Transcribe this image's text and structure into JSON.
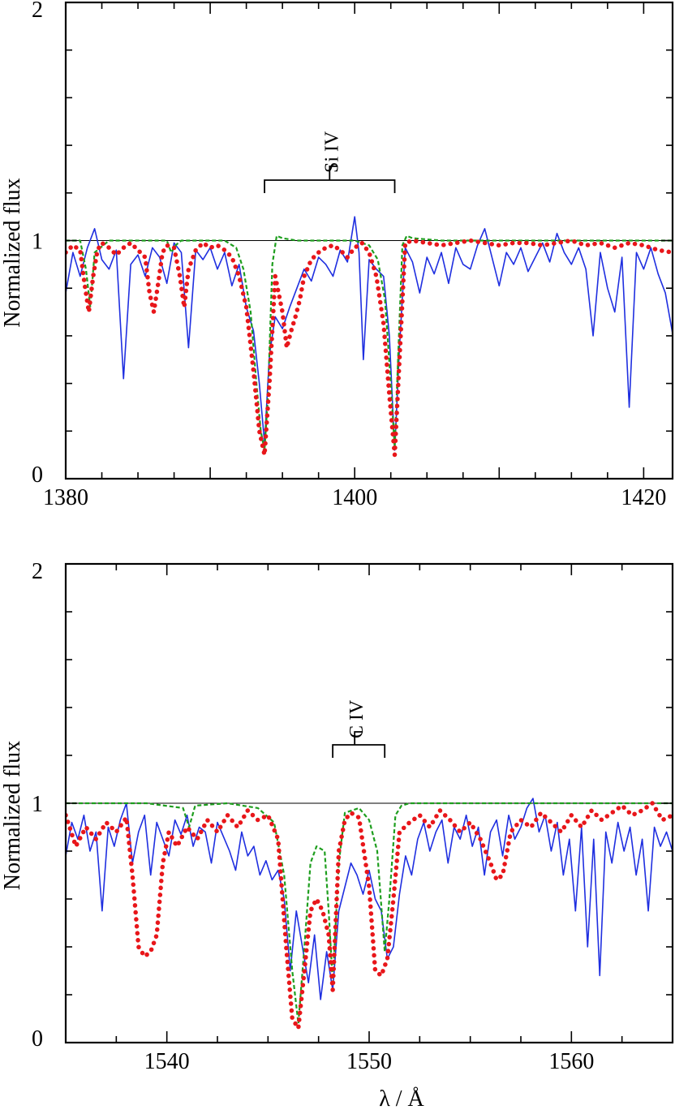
{
  "chart_data": [
    {
      "type": "line",
      "ylabel": "Normalized flux",
      "xlabel": "",
      "xlim": [
        1380,
        1422
      ],
      "ylim": [
        0,
        2
      ],
      "x_ticks": [
        1380,
        1400,
        1420
      ],
      "y_ticks": [
        0,
        1,
        2
      ],
      "ion": {
        "label": "Si IV",
        "lines": [
          1393.76,
          1402.77
        ]
      },
      "reference_level": 1,
      "series": [
        {
          "style": "observed",
          "color": "#1f2fe0",
          "x": [
            1380.0,
            1380.5,
            1381.0,
            1381.5,
            1382.0,
            1382.5,
            1383.0,
            1383.5,
            1384.0,
            1384.5,
            1385.0,
            1385.5,
            1386.0,
            1386.5,
            1387.0,
            1387.5,
            1388.0,
            1388.5,
            1389.0,
            1389.5,
            1390.0,
            1390.5,
            1391.0,
            1391.5,
            1392.0,
            1392.5,
            1393.0,
            1393.4,
            1393.76,
            1394.1,
            1394.5,
            1395.0,
            1395.5,
            1396.0,
            1396.5,
            1397.0,
            1397.5,
            1398.0,
            1398.5,
            1399.0,
            1399.5,
            1400.0,
            1400.3,
            1400.6,
            1401.0,
            1401.5,
            1402.0,
            1402.4,
            1402.77,
            1403.1,
            1403.5,
            1404.0,
            1404.5,
            1405.0,
            1405.5,
            1406.0,
            1406.5,
            1407.0,
            1407.5,
            1408.0,
            1408.5,
            1409.0,
            1409.5,
            1410.0,
            1410.5,
            1411.0,
            1411.5,
            1412.0,
            1412.5,
            1413.0,
            1413.5,
            1414.0,
            1414.5,
            1415.0,
            1415.5,
            1416.0,
            1416.5,
            1417.0,
            1417.5,
            1418.0,
            1418.5,
            1419.0,
            1419.5,
            1420.0,
            1420.5,
            1421.0,
            1421.5,
            1422.0
          ],
          "y": [
            0.78,
            0.95,
            0.85,
            0.97,
            1.05,
            0.92,
            0.88,
            0.96,
            0.42,
            0.9,
            0.94,
            0.85,
            0.97,
            0.93,
            0.82,
            0.99,
            0.95,
            0.55,
            0.96,
            0.92,
            0.97,
            0.88,
            0.95,
            0.81,
            0.9,
            0.72,
            0.62,
            0.4,
            0.15,
            0.52,
            0.68,
            0.63,
            0.72,
            0.8,
            0.88,
            0.83,
            0.93,
            0.9,
            0.85,
            0.96,
            0.91,
            1.1,
            0.95,
            0.5,
            0.92,
            0.88,
            0.85,
            0.6,
            0.12,
            0.55,
            0.97,
            0.91,
            0.78,
            0.93,
            0.86,
            0.95,
            0.82,
            0.97,
            0.9,
            0.88,
            0.98,
            1.05,
            0.93,
            0.81,
            0.95,
            0.9,
            0.97,
            0.87,
            0.93,
            0.99,
            0.91,
            1.03,
            0.95,
            0.9,
            0.97,
            0.88,
            0.6,
            0.95,
            0.8,
            0.7,
            0.93,
            0.3,
            0.95,
            0.88,
            0.97,
            0.86,
            0.78,
            0.61
          ]
        },
        {
          "style": "model-1",
          "color": "#e8161a",
          "x": [
            1380.0,
            1380.5,
            1381.0,
            1381.3,
            1381.6,
            1381.9,
            1382.2,
            1382.5,
            1383.0,
            1383.5,
            1384.0,
            1384.5,
            1385.0,
            1385.5,
            1385.8,
            1386.1,
            1386.4,
            1386.7,
            1387.0,
            1387.5,
            1387.9,
            1388.2,
            1388.5,
            1389.0,
            1389.5,
            1390.0,
            1390.5,
            1391.0,
            1391.5,
            1392.0,
            1392.5,
            1393.0,
            1393.4,
            1393.76,
            1394.1,
            1394.5,
            1395.0,
            1395.3,
            1395.6,
            1395.9,
            1396.2,
            1396.5,
            1397.0,
            1397.5,
            1398.0,
            1398.5,
            1399.0,
            1399.5,
            1400.0,
            1400.5,
            1401.0,
            1401.5,
            1402.0,
            1402.4,
            1402.77,
            1403.1,
            1403.5,
            1404.0,
            1405.0,
            1406.0,
            1407.0,
            1408.0,
            1409.0,
            1410.0,
            1411.0,
            1412.0,
            1413.0,
            1414.0,
            1415.0,
            1416.0,
            1417.0,
            1418.0,
            1419.0,
            1420.0,
            1421.0,
            1422.0
          ],
          "y": [
            0.95,
            0.98,
            0.96,
            0.82,
            0.7,
            0.85,
            0.96,
            0.99,
            0.97,
            0.94,
            0.97,
            0.99,
            0.96,
            0.93,
            0.78,
            0.7,
            0.82,
            0.95,
            0.98,
            0.97,
            0.85,
            0.72,
            0.88,
            0.96,
            0.99,
            0.97,
            0.98,
            0.96,
            0.93,
            0.85,
            0.72,
            0.45,
            0.2,
            0.1,
            0.4,
            0.85,
            0.7,
            0.55,
            0.62,
            0.68,
            0.75,
            0.85,
            0.92,
            0.95,
            0.97,
            0.98,
            0.96,
            0.93,
            0.97,
            0.99,
            0.95,
            0.85,
            0.65,
            0.35,
            0.1,
            0.5,
            0.99,
            1.0,
            0.99,
            0.98,
            0.99,
            1.0,
            0.99,
            0.98,
            0.99,
            0.99,
            0.98,
            0.99,
            1.0,
            0.98,
            0.99,
            0.97,
            0.99,
            0.98,
            0.96,
            0.95
          ]
        },
        {
          "style": "model-2",
          "color": "#1e9e1e",
          "x": [
            1380.0,
            1381.0,
            1381.4,
            1381.7,
            1382.0,
            1383.0,
            1385.0,
            1387.0,
            1387.3,
            1387.6,
            1388.0,
            1390.0,
            1391.0,
            1391.8,
            1392.3,
            1392.8,
            1393.2,
            1393.5,
            1393.76,
            1394.0,
            1394.3,
            1394.6,
            1395.0,
            1396.0,
            1398.0,
            1400.0,
            1401.0,
            1401.6,
            1402.1,
            1402.5,
            1402.77,
            1403.0,
            1403.3,
            1403.6,
            1404.0,
            1406.0,
            1410.0,
            1415.0,
            1420.0,
            1422.0
          ],
          "y": [
            1.0,
            1.0,
            0.88,
            0.72,
            0.95,
            1.0,
            1.0,
            1.0,
            0.95,
            0.98,
            1.0,
            1.0,
            1.0,
            0.97,
            0.88,
            0.7,
            0.4,
            0.2,
            0.12,
            0.35,
            0.9,
            1.02,
            1.01,
            1.0,
            1.0,
            1.0,
            0.98,
            0.92,
            0.75,
            0.4,
            0.13,
            0.5,
            0.98,
            1.02,
            1.01,
            1.0,
            1.0,
            1.0,
            1.0,
            1.0
          ]
        }
      ]
    },
    {
      "type": "line",
      "ylabel": "Normalized flux",
      "xlabel": "λ / Å",
      "xlim": [
        1535,
        1565
      ],
      "ylim": [
        0,
        2
      ],
      "x_ticks": [
        1540,
        1550,
        1560
      ],
      "y_ticks": [
        0,
        1,
        2
      ],
      "ion": {
        "label": "C IV",
        "lines": [
          1548.2,
          1550.77
        ]
      },
      "reference_level": 1,
      "series": [
        {
          "style": "observed",
          "color": "#1f2fe0",
          "x": [
            1535.0,
            1535.3,
            1535.6,
            1535.9,
            1536.2,
            1536.5,
            1536.8,
            1537.1,
            1537.4,
            1537.7,
            1538.0,
            1538.3,
            1538.6,
            1538.9,
            1539.2,
            1539.5,
            1539.8,
            1540.1,
            1540.4,
            1540.7,
            1541.0,
            1541.3,
            1541.6,
            1541.9,
            1542.2,
            1542.5,
            1542.8,
            1543.1,
            1543.4,
            1543.7,
            1544.0,
            1544.3,
            1544.6,
            1544.9,
            1545.2,
            1545.5,
            1545.8,
            1546.1,
            1546.4,
            1546.7,
            1547.0,
            1547.3,
            1547.6,
            1547.9,
            1548.2,
            1548.5,
            1548.8,
            1549.1,
            1549.4,
            1549.7,
            1550.0,
            1550.3,
            1550.6,
            1550.9,
            1551.2,
            1551.5,
            1551.8,
            1552.1,
            1552.4,
            1552.7,
            1553.0,
            1553.3,
            1553.6,
            1553.9,
            1554.2,
            1554.5,
            1554.8,
            1555.1,
            1555.4,
            1555.7,
            1556.0,
            1556.3,
            1556.6,
            1556.9,
            1557.2,
            1557.5,
            1557.8,
            1558.1,
            1558.4,
            1558.7,
            1559.0,
            1559.3,
            1559.6,
            1559.9,
            1560.2,
            1560.5,
            1560.8,
            1561.1,
            1561.4,
            1561.7,
            1562.0,
            1562.3,
            1562.6,
            1562.9,
            1563.2,
            1563.5,
            1563.8,
            1564.1,
            1564.4,
            1564.7,
            1565.0
          ],
          "y": [
            0.78,
            0.92,
            0.85,
            0.95,
            0.8,
            0.88,
            0.55,
            0.9,
            0.82,
            0.93,
            1.0,
            0.75,
            0.88,
            0.95,
            0.7,
            0.92,
            0.85,
            0.78,
            0.93,
            0.87,
            0.95,
            0.82,
            0.9,
            0.88,
            0.75,
            0.92,
            0.86,
            0.8,
            0.72,
            0.88,
            0.78,
            0.82,
            0.7,
            0.76,
            0.68,
            0.72,
            0.6,
            0.3,
            0.55,
            0.4,
            0.25,
            0.45,
            0.18,
            0.38,
            0.22,
            0.55,
            0.65,
            0.75,
            0.7,
            0.62,
            0.72,
            0.6,
            0.55,
            0.35,
            0.4,
            0.62,
            0.78,
            0.7,
            0.85,
            0.92,
            0.8,
            0.88,
            0.93,
            0.75,
            0.9,
            0.85,
            0.95,
            0.82,
            0.9,
            0.7,
            0.88,
            0.93,
            0.78,
            0.95,
            0.85,
            0.9,
            0.98,
            1.02,
            0.88,
            0.95,
            0.8,
            0.92,
            0.7,
            0.85,
            0.55,
            0.9,
            0.4,
            0.85,
            0.28,
            0.88,
            0.75,
            0.92,
            0.8,
            0.9,
            0.7,
            0.85,
            0.55,
            0.9,
            0.82,
            0.88,
            0.8
          ]
        },
        {
          "style": "model-1",
          "color": "#e8161a",
          "x": [
            1535.0,
            1535.5,
            1536.0,
            1536.5,
            1537.0,
            1537.5,
            1538.0,
            1538.3,
            1538.6,
            1538.9,
            1539.2,
            1539.5,
            1539.8,
            1540.1,
            1540.5,
            1541.0,
            1541.5,
            1542.0,
            1542.5,
            1543.0,
            1543.5,
            1544.0,
            1544.5,
            1545.0,
            1545.5,
            1545.9,
            1546.2,
            1546.5,
            1546.8,
            1547.1,
            1547.4,
            1547.7,
            1548.0,
            1548.2,
            1548.5,
            1548.8,
            1549.1,
            1549.5,
            1550.0,
            1550.3,
            1550.6,
            1550.9,
            1551.2,
            1551.5,
            1552.0,
            1552.5,
            1553.0,
            1553.5,
            1554.0,
            1554.5,
            1555.0,
            1555.5,
            1556.0,
            1556.3,
            1556.6,
            1557.0,
            1557.5,
            1558.0,
            1558.5,
            1559.0,
            1559.5,
            1560.0,
            1560.5,
            1561.0,
            1561.5,
            1562.0,
            1562.5,
            1563.0,
            1563.5,
            1564.0,
            1564.5,
            1565.0
          ],
          "y": [
            0.95,
            0.82,
            0.9,
            0.85,
            0.92,
            0.88,
            0.94,
            0.7,
            0.4,
            0.36,
            0.38,
            0.45,
            0.75,
            0.88,
            0.82,
            0.9,
            0.85,
            0.93,
            0.88,
            0.95,
            0.9,
            0.97,
            0.93,
            0.95,
            0.85,
            0.4,
            0.1,
            0.06,
            0.3,
            0.55,
            0.6,
            0.55,
            0.45,
            0.22,
            0.8,
            0.93,
            0.96,
            0.94,
            0.65,
            0.3,
            0.28,
            0.35,
            0.6,
            0.88,
            0.92,
            0.95,
            0.9,
            0.97,
            0.93,
            0.88,
            0.92,
            0.85,
            0.75,
            0.68,
            0.7,
            0.88,
            0.93,
            0.9,
            0.96,
            0.92,
            0.88,
            0.95,
            0.9,
            0.97,
            0.93,
            0.96,
            0.99,
            0.95,
            0.97,
            1.0,
            0.93,
            0.95
          ]
        },
        {
          "style": "model-2",
          "color": "#1e9e1e",
          "x": [
            1535.0,
            1537.0,
            1539.0,
            1540.8,
            1541.1,
            1541.4,
            1543.0,
            1544.5,
            1545.3,
            1545.8,
            1546.2,
            1546.5,
            1546.8,
            1547.1,
            1547.4,
            1547.8,
            1548.0,
            1548.2,
            1548.5,
            1548.8,
            1549.5,
            1550.0,
            1550.4,
            1550.77,
            1551.0,
            1551.3,
            1551.6,
            1552.0,
            1554.0,
            1558.0,
            1562.0,
            1565.0
          ],
          "y": [
            1.0,
            1.0,
            1.0,
            0.98,
            0.9,
            0.99,
            1.0,
            0.98,
            0.92,
            0.7,
            0.3,
            0.08,
            0.4,
            0.75,
            0.82,
            0.8,
            0.55,
            0.25,
            0.75,
            0.96,
            0.98,
            0.93,
            0.8,
            0.38,
            0.6,
            0.95,
            0.99,
            1.0,
            1.0,
            1.0,
            1.0,
            1.0
          ]
        }
      ]
    }
  ]
}
